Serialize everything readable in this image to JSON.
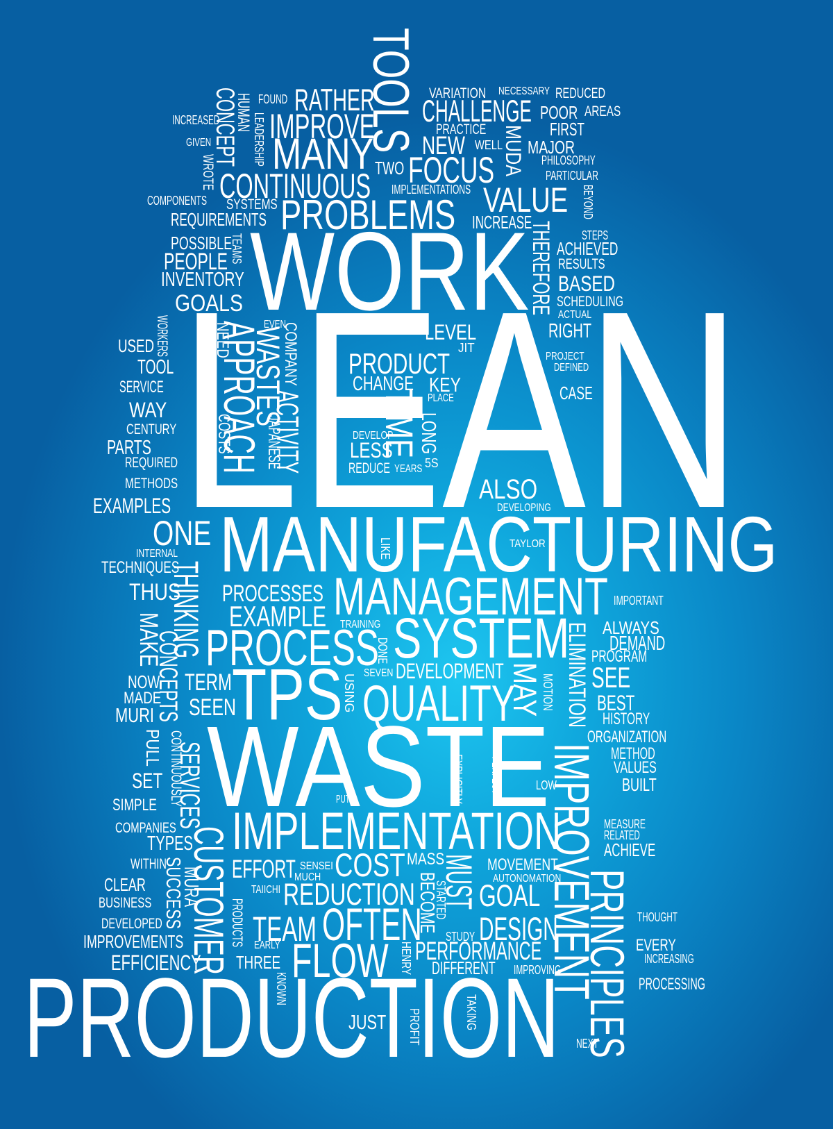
{
  "colors": {
    "background_center": "#1ec6f0",
    "background_edge": "#075fa2",
    "text": "#ffffff"
  },
  "words": {
    "lean": "LEAN",
    "manufacturing": "MANUFACTURING",
    "production": "PRODUCTION",
    "waste": "WASTE",
    "work": "WORK",
    "management": "MANAGEMENT",
    "system": "SYSTEM",
    "process": "PROCESS",
    "tps": "TPS",
    "quality": "QUALITY",
    "implementation": "IMPLEMENTATION",
    "improvement": "IMPROVEMENT",
    "principles": "PRINCIPLES",
    "customer": "CUSTOMER",
    "tools": "TOOLS",
    "many": "MANY",
    "problems": "PROBLEMS",
    "continuous": "CONTINUOUS",
    "improve": "IMPROVE",
    "rather": "RATHER",
    "challenge": "CHALLENGE",
    "focus": "FOCUS",
    "value": "VALUE",
    "approach": "APPROACH",
    "wastes": "WASTES",
    "activity": "ACTIVITY",
    "time": "TIME",
    "product": "PRODUCT",
    "one": "ONE",
    "thinking": "THINKING",
    "flow": "FLOW",
    "often": "OFTEN",
    "reduction": "REDUCTION",
    "team": "TEAM",
    "cost": "COST",
    "effort": "EFFORT",
    "goal": "GOAL",
    "design": "DESIGN",
    "performance": "PERFORMANCE",
    "must": "MUST",
    "may": "MAY",
    "see": "SEE",
    "elimination": "ELIMINATION",
    "development": "DEVELOPMENT",
    "example": "EXAMPLE",
    "processes": "PROCESSES",
    "term": "TERM",
    "seen": "SEEN",
    "concepts": "CONCEPTS",
    "make": "MAKE",
    "thus": "THUS",
    "techniques": "TECHNIQUES",
    "internal": "INTERNAL",
    "examples": "EXAMPLES",
    "methods": "METHODS",
    "required": "REQUIRED",
    "parts": "PARTS",
    "century": "CENTURY",
    "way": "WAY",
    "service": "SERVICE",
    "tool": "TOOL",
    "used": "USED",
    "workers": "WORKERS",
    "goals": "GOALS",
    "inventory": "INVENTORY",
    "people": "PEOPLE",
    "possible": "POSSIBLE",
    "teams": "TEAMS",
    "requirements": "REQUIREMENTS",
    "components": "COMPONENTS",
    "systems": "SYSTEMS",
    "wrote": "WROTE",
    "given": "GIVEN",
    "increased": "INCREASED",
    "concept": "CONCEPT",
    "human": "HUMAN",
    "leadership": "LEADERSHIP",
    "found": "FOUND",
    "two": "TWO",
    "implementations": "IMPLEMENTATIONS",
    "new": "NEW",
    "practice": "PRACTICE",
    "variation": "VARIATION",
    "necessary": "NECESSARY",
    "reduced": "REDUCED",
    "poor": "POOR",
    "areas": "AREAS",
    "first": "FIRST",
    "muda": "MUDA",
    "well": "WELL",
    "major": "MAJOR",
    "philosophy": "PHILOSOPHY",
    "particular": "PARTICULAR",
    "beyond": "BEYOND",
    "increase": "INCREASE",
    "therefore": "THEREFORE",
    "steps": "STEPS",
    "achieved": "ACHIEVED",
    "results": "RESULTS",
    "based": "BASED",
    "scheduling": "SCHEDULING",
    "actual": "ACTUAL",
    "right": "RIGHT",
    "level": "LEVEL",
    "jit": "JIT",
    "project": "PROJECT",
    "defined": "DEFINED",
    "case": "CASE",
    "change": "CHANGE",
    "key": "KEY",
    "place": "PLACE",
    "develop": "DEVELOP",
    "less": "LESS",
    "long": "LONG",
    "reduce": "REDUCE",
    "years": "YEARS",
    "5s": "5S",
    "also": "ALSO",
    "developing": "DEVELOPING",
    "taylor": "TAYLOR",
    "like": "LIKE",
    "even": "EVEN",
    "company": "COMPANY",
    "need": "NEED",
    "costs": "COSTS",
    "japanese": "JAPANESE",
    "important": "IMPORTANT",
    "always": "ALWAYS",
    "demand": "DEMAND",
    "program": "PROGRAM",
    "best": "BEST",
    "history": "HISTORY",
    "organization": "ORGANIZATION",
    "method": "METHOD",
    "values": "VALUES",
    "built": "BUILT",
    "motion": "MOTION",
    "training": "TRAINING",
    "done": "DONE",
    "seven": "SEVEN",
    "using": "USING",
    "now": "NOW",
    "made": "MADE",
    "muri": "MURI",
    "pull": "PULL",
    "continuously": "CONTINUOUSLY",
    "services": "SERVICES",
    "set": "SET",
    "simple": "SIMPLE",
    "companies": "COMPANIES",
    "types": "TYPES",
    "within": "WITHIN",
    "clear": "CLEAR",
    "business": "BUSINESS",
    "developed": "DEVELOPED",
    "improvements": "IMPROVEMENTS",
    "efficiency": "EFFICIENCY",
    "mura": "MURA",
    "success": "SUCCESS",
    "products": "PRODUCTS",
    "taiichi": "TAIICHI",
    "sensei": "SENSEI",
    "much": "MUCH",
    "mass": "MASS",
    "become": "BECOME",
    "started": "STARTED",
    "put": "PUT",
    "explicitly": "EXPLICITLY",
    "perfect": "PERFECT",
    "low": "LOW",
    "measure": "MEASURE",
    "related": "RELATED",
    "achieve": "ACHIEVE",
    "movement": "MOVEMENT",
    "autonomation": "AUTONOMATION",
    "study": "STUDY",
    "henry": "HENRY",
    "early": "EARLY",
    "three": "THREE",
    "different": "DIFFERENT",
    "improving": "IMPROVING",
    "thought": "THOUGHT",
    "every": "EVERY",
    "increasing": "INCREASING",
    "processing": "PROCESSING",
    "known": "KNOWN",
    "just": "JUST",
    "profit": "PROFIT",
    "taking": "TAKING",
    "next": "NEXT"
  }
}
